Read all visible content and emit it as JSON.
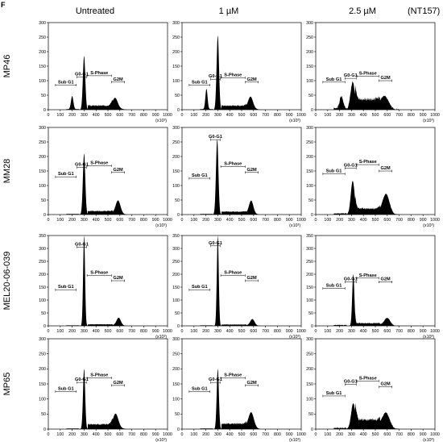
{
  "panel_letter": "F",
  "column_titles": [
    "Untreated",
    "1 µM",
    "2.5 µM"
  ],
  "compound_label": "(NT157)",
  "row_titles": [
    "MP46",
    "MM28",
    "MEL20-06-039",
    "MP65"
  ],
  "colors": {
    "histogram": "#000000",
    "axis": "#000000",
    "background": "#ffffff"
  },
  "chart_data": {
    "type": "histogram",
    "description_free": true,
    "x_axis": {
      "range": [
        0,
        1000
      ],
      "ticks": [
        0,
        100,
        200,
        300,
        400,
        500,
        600,
        700,
        800,
        900,
        1000
      ],
      "unit_label": "(x10³)"
    },
    "gate_labels": {
      "sub_g1": "Sub G1",
      "g0_g1": "G0-G1",
      "s_phase": "S-Phase",
      "g2m": "G2M"
    },
    "rows": [
      {
        "name": "MP46",
        "y_axis": {
          "range": [
            0,
            300
          ],
          "ticks": [
            0,
            50,
            100,
            150,
            200,
            250,
            300
          ]
        },
        "panels": [
          {
            "condition": "Untreated",
            "peaks": [
              {
                "x": 200,
                "h": 45,
                "w": 10
              },
              {
                "x": 300,
                "h": 185,
                "w": 10
              },
              {
                "x": 560,
                "h": 35,
                "w": 22
              }
            ],
            "s_level": 14,
            "noise": 0,
            "gates": {
              "sub": [
                60,
                235
              ],
              "g0": [
                240,
                320
              ],
              "s": [
                325,
                530
              ],
              "g2": [
                530,
                640
              ]
            },
            "label_y": {
              "sub": 85,
              "g0": 112,
              "s": 117,
              "g2": 95
            }
          },
          {
            "condition": "1 µM",
            "peaks": [
              {
                "x": 205,
                "h": 70,
                "w": 9
              },
              {
                "x": 300,
                "h": 255,
                "w": 10
              },
              {
                "x": 575,
                "h": 40,
                "w": 20
              }
            ],
            "s_level": 14,
            "noise": 0,
            "gates": {
              "sub": [
                60,
                235
              ],
              "g0": [
                240,
                320
              ],
              "s": [
                325,
                530
              ],
              "g2": [
                530,
                640
              ]
            },
            "label_y": {
              "sub": 85,
              "g0": 105,
              "s": 110,
              "g2": 95
            }
          },
          {
            "condition": "2.5 µM",
            "peaks": [
              {
                "x": 215,
                "h": 40,
                "w": 14
              },
              {
                "x": 310,
                "h": 95,
                "w": 18
              },
              {
                "x": 580,
                "h": 35,
                "w": 30
              }
            ],
            "s_level": 35,
            "noise": 6,
            "gates": {
              "sub": [
                60,
                245
              ],
              "g0": [
                245,
                340
              ],
              "s": [
                345,
                530
              ],
              "g2": [
                530,
                640
              ]
            },
            "label_y": {
              "sub": 95,
              "g0": 108,
              "s": 115,
              "g2": 100
            }
          }
        ]
      },
      {
        "name": "MM28",
        "y_axis": {
          "range": [
            0,
            300
          ],
          "ticks": [
            0,
            50,
            100,
            150,
            200,
            250,
            300
          ]
        },
        "panels": [
          {
            "condition": "Untreated",
            "peaks": [
              {
                "x": 300,
                "h": 210,
                "w": 10
              },
              {
                "x": 585,
                "h": 45,
                "w": 20
              }
            ],
            "s_level": 12,
            "noise": 0,
            "gates": {
              "sub": [
                60,
                235
              ],
              "g0": [
                240,
                320
              ],
              "s": [
                325,
                530
              ],
              "g2": [
                530,
                640
              ]
            },
            "label_y": {
              "sub": 130,
              "g0": 162,
              "s": 168,
              "g2": 145
            }
          },
          {
            "condition": "1 µM",
            "peaks": [
              {
                "x": 295,
                "h": 260,
                "w": 10
              },
              {
                "x": 580,
                "h": 45,
                "w": 18
              }
            ],
            "s_level": 10,
            "noise": 0,
            "gates": {
              "sub": [
                60,
                235
              ],
              "g0": [
                240,
                320
              ],
              "s": [
                325,
                530
              ],
              "g2": [
                530,
                640
              ]
            },
            "label_y": {
              "sub": 125,
              "g0": 258,
              "s": 165,
              "g2": 145
            }
          },
          {
            "condition": "2.5 µM",
            "peaks": [
              {
                "x": 310,
                "h": 115,
                "w": 16
              },
              {
                "x": 590,
                "h": 65,
                "w": 28
              }
            ],
            "s_level": 20,
            "noise": 3,
            "gates": {
              "sub": [
                60,
                245
              ],
              "g0": [
                245,
                340
              ],
              "s": [
                345,
                530
              ],
              "g2": [
                530,
                640
              ]
            },
            "label_y": {
              "sub": 140,
              "g0": 160,
              "s": 172,
              "g2": 150
            }
          }
        ]
      },
      {
        "name": "MEL20-06-039",
        "y_axis": {
          "range": [
            0,
            350
          ],
          "ticks": [
            0,
            50,
            100,
            150,
            200,
            250,
            300,
            350
          ]
        },
        "panels": [
          {
            "condition": "Untreated",
            "peaks": [
              {
                "x": 300,
                "h": 350,
                "w": 8
              },
              {
                "x": 590,
                "h": 30,
                "w": 18
              }
            ],
            "s_level": 6,
            "noise": 0,
            "gates": {
              "sub": [
                60,
                235
              ],
              "g0": [
                240,
                320
              ],
              "s": [
                325,
                530
              ],
              "g2": [
                530,
                640
              ]
            },
            "label_y": {
              "sub": 140,
              "g0": 305,
              "s": 195,
              "g2": 175
            }
          },
          {
            "condition": "1 µM",
            "peaks": [
              {
                "x": 300,
                "h": 350,
                "w": 8
              },
              {
                "x": 590,
                "h": 25,
                "w": 18
              }
            ],
            "s_level": 5,
            "noise": 0,
            "gates": {
              "sub": [
                60,
                235
              ],
              "g0": [
                240,
                320
              ],
              "s": [
                325,
                530
              ],
              "g2": [
                530,
                640
              ]
            },
            "label_y": {
              "sub": 140,
              "g0": 310,
              "s": 195,
              "g2": 175
            }
          },
          {
            "condition": "2.5 µM",
            "peaks": [
              {
                "x": 315,
                "h": 200,
                "w": 9
              },
              {
                "x": 600,
                "h": 28,
                "w": 24
              }
            ],
            "s_level": 10,
            "noise": 2,
            "gates": {
              "sub": [
                60,
                245
              ],
              "g0": [
                245,
                340
              ],
              "s": [
                345,
                530
              ],
              "g2": [
                530,
                640
              ]
            },
            "label_y": {
              "sub": 145,
              "g0": 170,
              "s": 185,
              "g2": 170
            }
          }
        ]
      },
      {
        "name": "MP65",
        "y_axis": {
          "range": [
            0,
            300
          ],
          "ticks": [
            0,
            50,
            100,
            150,
            200,
            250,
            300
          ]
        },
        "panels": [
          {
            "condition": "Untreated",
            "peaks": [
              {
                "x": 300,
                "h": 200,
                "w": 9
              },
              {
                "x": 565,
                "h": 45,
                "w": 22
              }
            ],
            "s_level": 16,
            "noise": 0,
            "gates": {
              "sub": [
                60,
                235
              ],
              "g0": [
                240,
                320
              ],
              "s": [
                325,
                530
              ],
              "g2": [
                530,
                640
              ]
            },
            "label_y": {
              "sub": 125,
              "g0": 155,
              "s": 170,
              "g2": 145
            }
          },
          {
            "condition": "1 µM",
            "peaks": [
              {
                "x": 300,
                "h": 200,
                "w": 9
              },
              {
                "x": 580,
                "h": 50,
                "w": 22
              }
            ],
            "s_level": 18,
            "noise": 0,
            "gates": {
              "sub": [
                60,
                235
              ],
              "g0": [
                240,
                320
              ],
              "s": [
                325,
                530
              ],
              "g2": [
                530,
                640
              ]
            },
            "label_y": {
              "sub": 125,
              "g0": 155,
              "s": 170,
              "g2": 145
            }
          },
          {
            "condition": "2.5 µM",
            "peaks": [
              {
                "x": 315,
                "h": 85,
                "w": 18
              },
              {
                "x": 590,
                "h": 45,
                "w": 30
              }
            ],
            "s_level": 30,
            "noise": 3,
            "gates": {
              "sub": [
                60,
                245
              ],
              "g0": [
                245,
                340
              ],
              "s": [
                345,
                530
              ],
              "g2": [
                530,
                640
              ]
            },
            "label_y": {
              "sub": 110,
              "g0": 148,
              "s": 160,
              "g2": 140
            }
          }
        ]
      }
    ]
  }
}
